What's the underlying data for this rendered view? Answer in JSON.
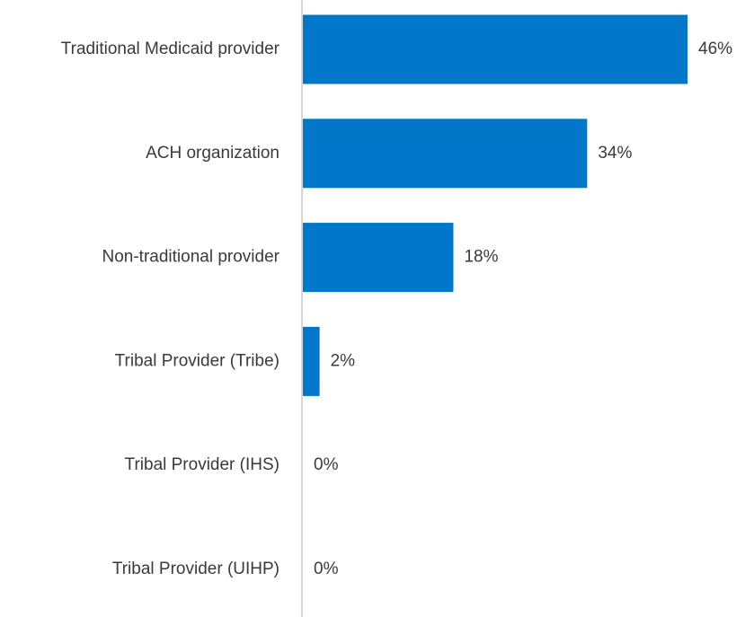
{
  "chart_data": {
    "type": "bar",
    "orientation": "horizontal",
    "categories": [
      "Traditional Medicaid provider",
      "ACH organization",
      "Non-traditional provider",
      "Tribal Provider (Tribe)",
      "Tribal Provider (IHS)",
      "Tribal Provider (UIHP)"
    ],
    "values": [
      46,
      34,
      18,
      2,
      0,
      0
    ],
    "value_labels": [
      "46%",
      "34%",
      "18%",
      "2%",
      "0%",
      "0%"
    ],
    "color": "#0077c8"
  }
}
